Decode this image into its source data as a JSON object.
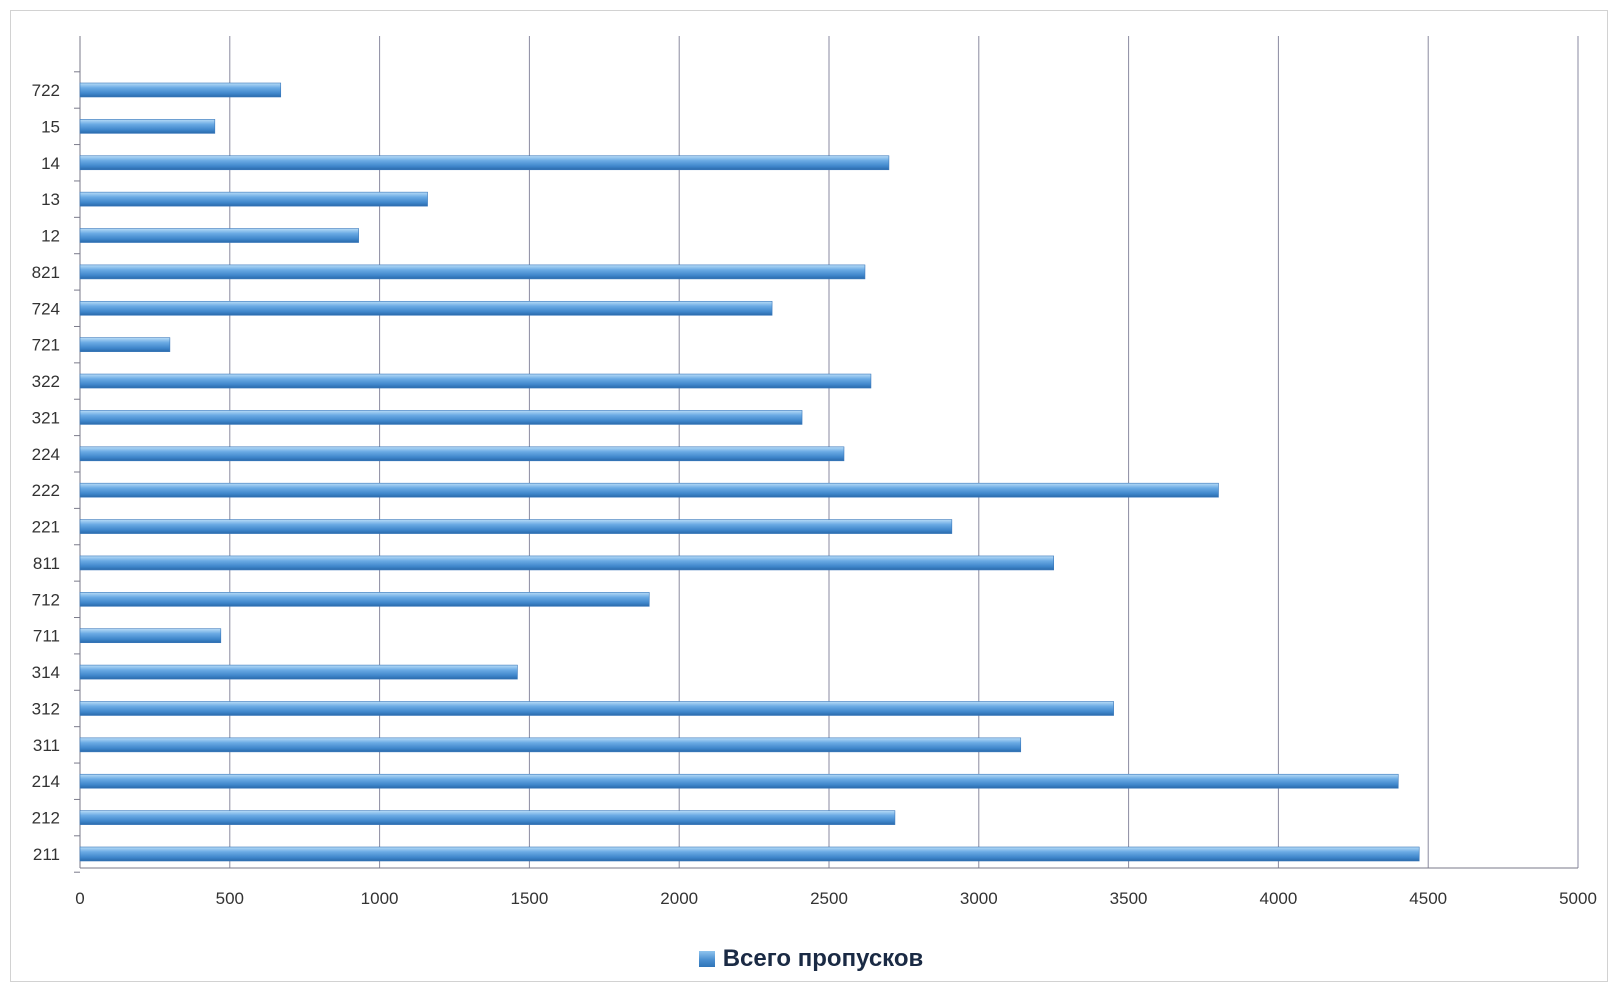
{
  "chart_data": {
    "type": "bar",
    "orientation": "horizontal",
    "categories": [
      "211",
      "212",
      "214",
      "311",
      "312",
      "314",
      "711",
      "712",
      "811",
      "221",
      "222",
      "224",
      "321",
      "322",
      "721",
      "724",
      "821",
      "12",
      "13",
      "14",
      "15",
      "722"
    ],
    "series": [
      {
        "name": "Всего пропусков",
        "values": [
          4470,
          2720,
          4400,
          3140,
          3450,
          1460,
          470,
          1900,
          3250,
          2910,
          3800,
          2550,
          2410,
          2640,
          300,
          2310,
          2620,
          930,
          1160,
          2700,
          450,
          670
        ]
      }
    ],
    "xlim": [
      0,
      5000
    ],
    "xticks": [
      "0",
      "500",
      "1000",
      "1500",
      "2000",
      "2500",
      "3000",
      "3500",
      "4000",
      "4500",
      "5000"
    ],
    "title": "",
    "xlabel": "",
    "ylabel": "",
    "grid": "vertical",
    "legend_position": "bottom",
    "bar_color": "#4a8fd0"
  }
}
